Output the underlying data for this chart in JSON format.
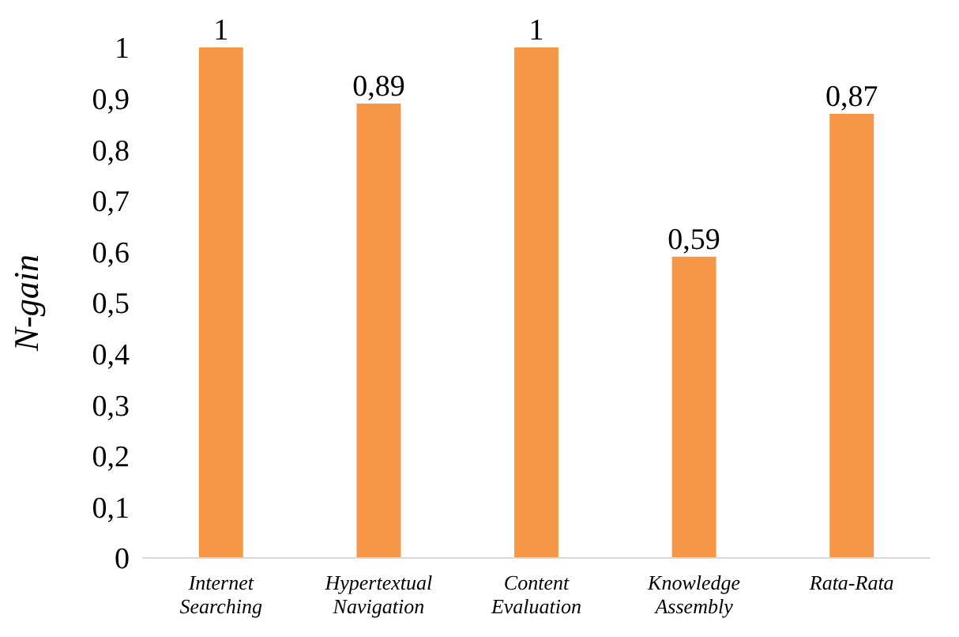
{
  "chart_data": {
    "type": "bar",
    "ylabel": "N-gain",
    "categories": [
      "Internet Searching",
      "Hypertextual Navigation",
      "Content Evaluation",
      "Knowledge Assembly",
      "Rata-Rata"
    ],
    "values": [
      1,
      0.89,
      1,
      0.59,
      0.87
    ],
    "value_labels": [
      "1",
      "0,89",
      "1",
      "0,59",
      "0,87"
    ],
    "color": "#f79646",
    "ylim": [
      0,
      1
    ],
    "yticks": [
      {
        "value": 0,
        "label": "0"
      },
      {
        "value": 0.1,
        "label": "0,1"
      },
      {
        "value": 0.2,
        "label": "0,2"
      },
      {
        "value": 0.3,
        "label": "0,3"
      },
      {
        "value": 0.4,
        "label": "0,4"
      },
      {
        "value": 0.5,
        "label": "0,5"
      },
      {
        "value": 0.6,
        "label": "0,6"
      },
      {
        "value": 0.7,
        "label": "0,7"
      },
      {
        "value": 0.8,
        "label": "0,8"
      },
      {
        "value": 0.9,
        "label": "0,9"
      },
      {
        "value": 1,
        "label": "1"
      }
    ],
    "grid": false
  }
}
